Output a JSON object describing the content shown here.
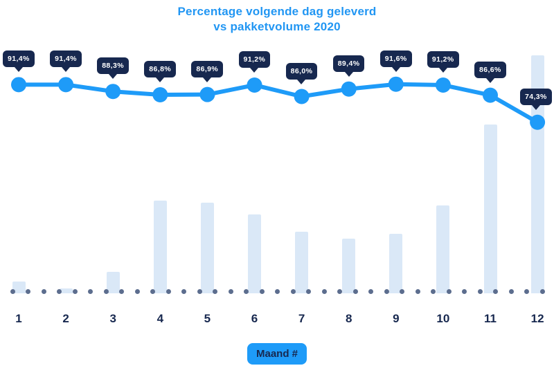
{
  "title": {
    "line1": "Percentage volgende dag geleverd",
    "line2": "vs pakketvolume 2020"
  },
  "x_axis": {
    "badge_label": "Maand #"
  },
  "chart_data": {
    "type": "line+bar",
    "title": "Percentage volgende dag geleverd vs pakketvolume 2020",
    "xlabel": "Maand #",
    "categories": [
      "1",
      "2",
      "3",
      "4",
      "5",
      "6",
      "7",
      "8",
      "9",
      "10",
      "11",
      "12"
    ],
    "series": [
      {
        "name": "Percentage volgende dag geleverd",
        "type": "line",
        "unit": "%",
        "values": [
          91.4,
          91.4,
          88.3,
          86.8,
          86.9,
          91.2,
          86.0,
          89.4,
          91.6,
          91.2,
          86.6,
          74.3
        ],
        "labels": [
          "91,4%",
          "91,4%",
          "88,3%",
          "86,8%",
          "86,9%",
          "91,2%",
          "86,0%",
          "89,4%",
          "91,6%",
          "91,2%",
          "86,6%",
          "74,3%"
        ]
      },
      {
        "name": "Pakketvolume 2020",
        "type": "bar",
        "scale": "relative, hoogste maand = 100",
        "values": [
          5,
          2,
          9,
          39,
          38,
          33,
          26,
          23,
          25,
          37,
          71,
          100
        ]
      }
    ],
    "legend": "none",
    "grid": "dotted baseline only"
  },
  "colors": {
    "title_blue": "#2196F3",
    "line_blue": "#1E9BF8",
    "bar_fill": "#DAE8F7",
    "navy": "#17284F",
    "baseline_dot": "#5C6D8E",
    "callout_text": "#FFFFFF",
    "background": "#FFFFFF"
  }
}
